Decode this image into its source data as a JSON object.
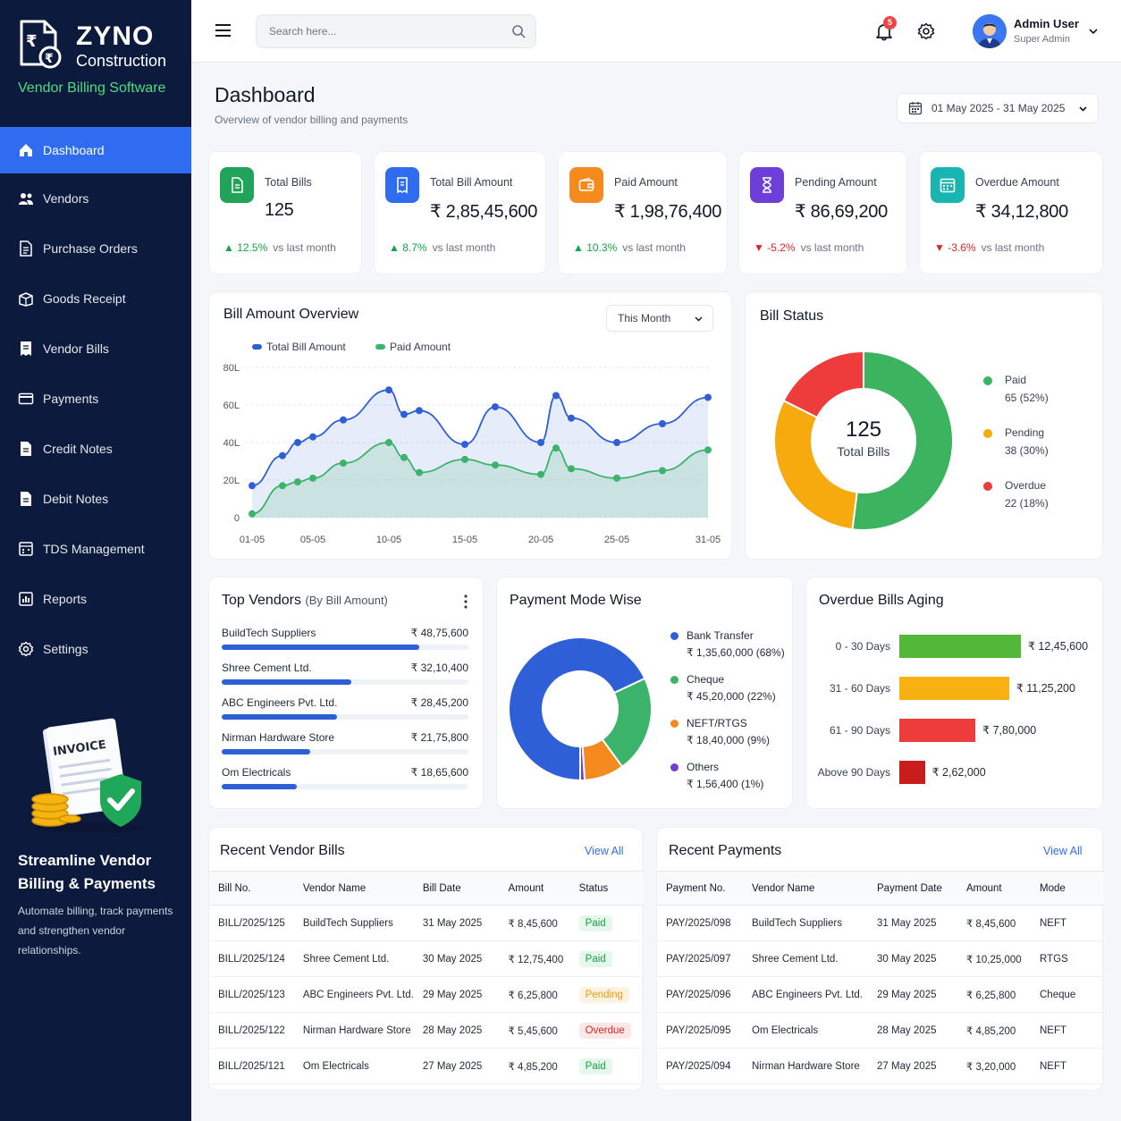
{
  "brand": {
    "name": "ZYNO",
    "sub": "Construction",
    "tagline": "Vendor Billing Software"
  },
  "sidebar": {
    "items": [
      {
        "label": "Dashboard",
        "icon": "home-icon"
      },
      {
        "label": "Vendors",
        "icon": "users-icon"
      },
      {
        "label": "Purchase Orders",
        "icon": "document-icon"
      },
      {
        "label": "Goods Receipt",
        "icon": "box-icon"
      },
      {
        "label": "Vendor Bills",
        "icon": "bill-icon"
      },
      {
        "label": "Payments",
        "icon": "card-icon"
      },
      {
        "label": "Credit Notes",
        "icon": "note-icon"
      },
      {
        "label": "Debit Notes",
        "icon": "note-icon"
      },
      {
        "label": "TDS Management",
        "icon": "calc-icon"
      },
      {
        "label": "Reports",
        "icon": "chart-icon"
      },
      {
        "label": "Settings",
        "icon": "gear-icon"
      }
    ],
    "promo": {
      "art_label": "INVOICE",
      "title": "Streamline Vendor Billing & Payments",
      "text": "Automate billing, track payments and strengthen vendor relationships."
    }
  },
  "topbar": {
    "search_placeholder": "Search here...",
    "notifications": "5",
    "user_name": "Admin User",
    "user_role": "Super Admin"
  },
  "page": {
    "title": "Dashboard",
    "subtitle": "Overview of vendor billing and payments",
    "date_range": "01 May 2025 - 31 May 2025"
  },
  "kpis": [
    {
      "label": "Total Bills",
      "value": "125",
      "trend": "▲ 12.5%",
      "direction": "up",
      "vs": "vs last month",
      "color": "#22a35a"
    },
    {
      "label": "Total Bill Amount",
      "value": "₹ 2,85,45,600",
      "trend": "▲ 8.7%",
      "direction": "up",
      "vs": "vs last month",
      "color": "#2f6cf0"
    },
    {
      "label": "Paid Amount",
      "value": "₹ 1,98,76,400",
      "trend": "▲ 10.3%",
      "direction": "up",
      "vs": "vs last month",
      "color": "#f58a1f"
    },
    {
      "label": "Pending Amount",
      "value": "₹ 86,69,200",
      "trend": "▼ -5.2%",
      "direction": "down",
      "vs": "vs last month",
      "color": "#6d3fd8"
    },
    {
      "label": "Overdue Amount",
      "value": "₹ 34,12,800",
      "trend": "▼ -3.6%",
      "direction": "down",
      "vs": "vs last month",
      "color": "#19b5b0"
    }
  ],
  "bill_overview": {
    "title": "Bill Amount Overview",
    "period": "This Month",
    "chart_data": {
      "type": "area",
      "x": [
        "01-05",
        "03-05",
        "04-05",
        "05-05",
        "07-05",
        "10-05",
        "11-05",
        "12-05",
        "15-05",
        "17-05",
        "20-05",
        "21-05",
        "22-05",
        "25-05",
        "28-05",
        "31-05"
      ],
      "xticks": [
        "01-05",
        "05-05",
        "10-05",
        "15-05",
        "20-05",
        "25-05",
        "31-05"
      ],
      "yticks": [
        "0",
        "20L",
        "40L",
        "60L",
        "80L"
      ],
      "ylim": [
        0,
        80
      ],
      "series": [
        {
          "name": "Total Bill Amount",
          "color": "#2f5fd6",
          "values": [
            17,
            33,
            40,
            43,
            52,
            68,
            55,
            57,
            39,
            59,
            40,
            65,
            53,
            40,
            50,
            64
          ]
        },
        {
          "name": "Paid Amount",
          "color": "#3bb36a",
          "values": [
            2,
            17,
            19,
            21,
            29,
            40,
            32,
            24,
            31,
            28,
            23,
            37,
            26,
            21,
            25,
            36
          ]
        }
      ]
    }
  },
  "bill_status": {
    "title": "Bill Status",
    "center_value": "125",
    "center_label": "Total Bills",
    "chart_data": {
      "type": "pie",
      "slices": [
        {
          "label": "Paid",
          "detail": "65 (52%)",
          "value": 65,
          "color": "#3bb35f"
        },
        {
          "label": "Pending",
          "detail": "38 (30%)",
          "value": 38,
          "color": "#f7aa0e"
        },
        {
          "label": "Overdue",
          "detail": "22 (18%)",
          "value": 22,
          "color": "#ee3b3b"
        }
      ]
    }
  },
  "top_vendors": {
    "title": "Top Vendors",
    "subtitle": "(By Bill Amount)",
    "items": [
      {
        "name": "BuildTech Suppliers",
        "amount": "₹ 48,75,600",
        "value": 4875600
      },
      {
        "name": "Shree Cement Ltd.",
        "amount": "₹ 32,10,400",
        "value": 3210400
      },
      {
        "name": "ABC Engineers Pvt. Ltd.",
        "amount": "₹ 28,45,200",
        "value": 2845200
      },
      {
        "name": "Nirman Hardware Store",
        "amount": "₹ 21,75,800",
        "value": 2175800
      },
      {
        "name": "Om Electricals",
        "amount": "₹ 18,65,600",
        "value": 1865600
      }
    ]
  },
  "payment_mode": {
    "title": "Payment Mode Wise",
    "chart_data": {
      "type": "pie",
      "slices": [
        {
          "label": "Bank Transfer",
          "detail": "₹ 1,35,60,000 (68%)",
          "value": 68,
          "color": "#2f5fd6"
        },
        {
          "label": "Cheque",
          "detail": "₹ 45,20,000 (22%)",
          "value": 22,
          "color": "#3bb36a"
        },
        {
          "label": "NEFT/RTGS",
          "detail": "₹ 18,40,000 (9%)",
          "value": 9,
          "color": "#f58a1f"
        },
        {
          "label": "Others",
          "detail": "₹ 1,56,400 (1%)",
          "value": 1,
          "color": "#6d3fd8"
        }
      ]
    }
  },
  "aging": {
    "title": "Overdue Bills Aging",
    "chart_data": {
      "type": "bar",
      "categories": [
        "0 - 30 Days",
        "31 - 60 Days",
        "61 - 90 Days",
        "Above 90 Days"
      ],
      "values": [
        1245600,
        1125200,
        780000,
        262000
      ],
      "labels": [
        "₹ 12,45,600",
        "₹ 11,25,200",
        "₹ 7,80,000",
        "₹ 2,62,000"
      ],
      "colors": [
        "#52b83a",
        "#f7b113",
        "#ee3b3b",
        "#c91c1c"
      ]
    }
  },
  "recent_bills": {
    "title": "Recent Vendor Bills",
    "view_all": "View All",
    "columns": [
      "Bill No.",
      "Vendor Name",
      "Bill Date",
      "Amount",
      "Status"
    ],
    "rows": [
      [
        "BILL/2025/125",
        "BuildTech Suppliers",
        "31 May 2025",
        "₹ 8,45,600",
        "Paid"
      ],
      [
        "BILL/2025/124",
        "Shree Cement Ltd.",
        "30 May 2025",
        "₹ 12,75,400",
        "Paid"
      ],
      [
        "BILL/2025/123",
        "ABC Engineers Pvt. Ltd.",
        "29 May 2025",
        "₹ 6,25,800",
        "Pending"
      ],
      [
        "BILL/2025/122",
        "Nirman Hardware Store",
        "28 May 2025",
        "₹ 5,45,600",
        "Overdue"
      ],
      [
        "BILL/2025/121",
        "Om Electricals",
        "27 May 2025",
        "₹ 4,85,200",
        "Paid"
      ]
    ]
  },
  "recent_payments": {
    "title": "Recent Payments",
    "view_all": "View All",
    "columns": [
      "Payment No.",
      "Vendor Name",
      "Payment Date",
      "Amount",
      "Mode"
    ],
    "rows": [
      [
        "PAY/2025/098",
        "BuildTech Suppliers",
        "31 May 2025",
        "₹ 8,45,600",
        "NEFT"
      ],
      [
        "PAY/2025/097",
        "Shree Cement Ltd.",
        "30 May 2025",
        "₹ 10,25,000",
        "RTGS"
      ],
      [
        "PAY/2025/096",
        "ABC Engineers Pvt. Ltd.",
        "29 May 2025",
        "₹ 6,25,800",
        "Cheque"
      ],
      [
        "PAY/2025/095",
        "Om Electricals",
        "28 May 2025",
        "₹ 4,85,200",
        "NEFT"
      ],
      [
        "PAY/2025/094",
        "Nirman Hardware Store",
        "27 May 2025",
        "₹ 3,20,000",
        "NEFT"
      ]
    ]
  }
}
